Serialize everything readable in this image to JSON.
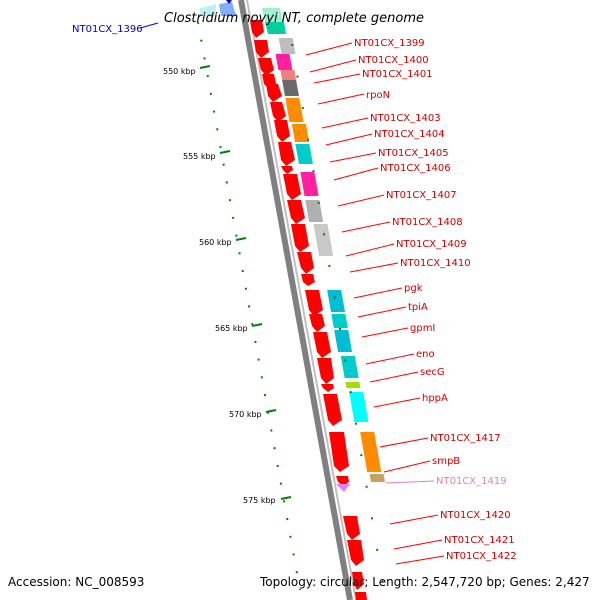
{
  "title": "Clostridium novyi NT, complete genome",
  "footer": {
    "accession": "Accession: NC_008593",
    "summary": "Topology: circular; Length: 2,547,720 bp; Genes: 2,427"
  },
  "ticks": [
    "550 kbp",
    "555 kbp",
    "560 kbp",
    "565 kbp",
    "570 kbp",
    "575 kbp"
  ],
  "labels": [
    {
      "text": "NT01CX_1396",
      "color": "#0000cc"
    },
    {
      "text": "NT01CX_1399",
      "color": "#cc0000"
    },
    {
      "text": "NT01CX_1400",
      "color": "#cc0000"
    },
    {
      "text": "NT01CX_1401",
      "color": "#cc0000"
    },
    {
      "text": "rpoN",
      "color": "#cc0000"
    },
    {
      "text": "NT01CX_1403",
      "color": "#cc0000"
    },
    {
      "text": "NT01CX_1404",
      "color": "#cc0000"
    },
    {
      "text": "NT01CX_1405",
      "color": "#cc0000"
    },
    {
      "text": "NT01CX_1406",
      "color": "#cc0000"
    },
    {
      "text": "NT01CX_1407",
      "color": "#cc0000"
    },
    {
      "text": "NT01CX_1408",
      "color": "#cc0000"
    },
    {
      "text": "NT01CX_1409",
      "color": "#cc0000"
    },
    {
      "text": "NT01CX_1410",
      "color": "#cc0000"
    },
    {
      "text": "pgk",
      "color": "#cc0000"
    },
    {
      "text": "tpiA",
      "color": "#cc0000"
    },
    {
      "text": "gpmI",
      "color": "#cc0000"
    },
    {
      "text": "eno",
      "color": "#cc0000"
    },
    {
      "text": "secG",
      "color": "#cc0000"
    },
    {
      "text": "hppA",
      "color": "#cc0000"
    },
    {
      "text": "NT01CX_1417",
      "color": "#cc0000"
    },
    {
      "text": "smpB",
      "color": "#cc0000"
    },
    {
      "text": "NT01CX_1419",
      "color": "#e27fb5"
    },
    {
      "text": "NT01CX_1420",
      "color": "#cc0000"
    },
    {
      "text": "NT01CX_1421",
      "color": "#cc0000"
    },
    {
      "text": "NT01CX_1422",
      "color": "#cc0000"
    }
  ],
  "cog_colors": [
    "#f9a6c6",
    "#bdbdbd",
    "#ff1fa0",
    "#f08080",
    "#696969",
    "#ff8c00",
    "#00cccc",
    "#b0b0b0",
    "#c8c8c8",
    "#00bcd4",
    "#00ffff",
    "#a0e000",
    "#c8a060",
    "#e080ff"
  ],
  "colors": {
    "cds": "#ff0000",
    "backbone": "#808080",
    "tick": "#008000",
    "label_line_red": "#ff0000",
    "label_line_blue": "#0000ff"
  }
}
